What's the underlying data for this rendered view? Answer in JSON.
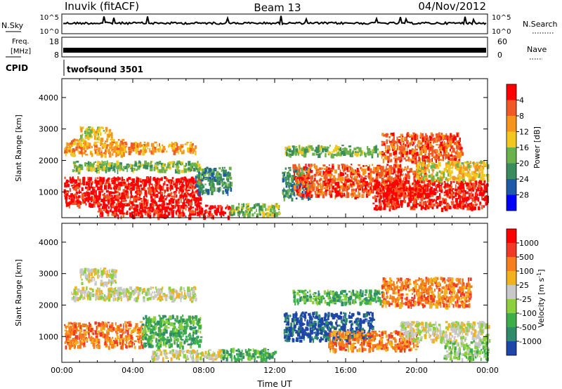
{
  "header": {
    "site": "Inuvik (fitACF)",
    "beam": "Beam 13",
    "date": "04/Nov/2012"
  },
  "panels": {
    "nsky_label": "N.Sky",
    "nsky_ticks": [
      "10^5",
      "10^0"
    ],
    "nsearch_label": "N.Search",
    "nsearch_ticks": [
      "10^5",
      "10^0"
    ],
    "freq_label_1": "Freq.",
    "freq_label_2": "[MHz]",
    "freq_ticks": [
      "18",
      "8"
    ],
    "nave_label": "Nave",
    "nave_ticks": [
      "60",
      "0"
    ],
    "cpid_label": "CPID",
    "cpid_value": "twofsound 3501"
  },
  "chart_data": [
    {
      "type": "heatmap",
      "name": "power-panel",
      "ylabel": "Slant Range [km]",
      "xlabel": "",
      "x_ticks": [
        "00:00",
        "04:00",
        "08:00",
        "12:00",
        "16:00",
        "20:00",
        "00:00"
      ],
      "y_ticks": [
        1000,
        2000,
        3000,
        4000
      ],
      "ylim": [
        180,
        4600
      ],
      "xlim": [
        0,
        24
      ],
      "colorbar": {
        "label": "Power [dB]",
        "ticks": [
          "4",
          "8",
          "12",
          "16",
          "20",
          "24",
          "28"
        ],
        "colors": [
          "#0000ff",
          "#1e5aa8",
          "#3a8c5a",
          "#6cb24a",
          "#f2c81e",
          "#f7941d",
          "#f15a24",
          "#ff0000"
        ]
      },
      "regions": [
        {
          "t0": 0.1,
          "t1": 7.8,
          "r0": 600,
          "r1": 1500,
          "level": 7
        },
        {
          "t0": 0.1,
          "t1": 3.5,
          "r0": 2200,
          "r1": 2700,
          "level": 5
        },
        {
          "t0": 3.0,
          "t1": 7.5,
          "r0": 2300,
          "r1": 2600,
          "level": 5
        },
        {
          "t0": 1.0,
          "t1": 2.8,
          "r0": 2700,
          "r1": 3100,
          "level": 4
        },
        {
          "t0": 0.5,
          "t1": 7.8,
          "r0": 1700,
          "r1": 2000,
          "level": 3
        },
        {
          "t0": 2.0,
          "t1": 9.5,
          "r0": 250,
          "r1": 600,
          "level": 7
        },
        {
          "t0": 7.5,
          "t1": 9.5,
          "r0": 1000,
          "r1": 1800,
          "level": 2
        },
        {
          "t0": 9.5,
          "t1": 12.3,
          "r0": 300,
          "r1": 650,
          "level": 3
        },
        {
          "t0": 12.4,
          "t1": 14.0,
          "r0": 800,
          "r1": 1800,
          "level": 2
        },
        {
          "t0": 13.0,
          "t1": 20.5,
          "r0": 900,
          "r1": 1900,
          "level": 6
        },
        {
          "t0": 17.5,
          "t1": 24.0,
          "r0": 500,
          "r1": 1400,
          "level": 7
        },
        {
          "t0": 12.5,
          "t1": 18.0,
          "r0": 2200,
          "r1": 2500,
          "level": 3
        },
        {
          "t0": 18.0,
          "t1": 22.5,
          "r0": 2000,
          "r1": 2900,
          "level": 6
        },
        {
          "t0": 20.0,
          "t1": 24.0,
          "r0": 1400,
          "r1": 2000,
          "level": 4
        }
      ]
    },
    {
      "type": "heatmap",
      "name": "velocity-panel",
      "ylabel": "Slant Range [km]",
      "xlabel": "Time UT",
      "x_ticks": [
        "00:00",
        "04:00",
        "08:00",
        "12:00",
        "16:00",
        "20:00",
        "00:00"
      ],
      "y_ticks": [
        1000,
        2000,
        3000,
        4000
      ],
      "ylim": [
        180,
        4600
      ],
      "xlim": [
        0,
        24
      ],
      "colorbar": {
        "label": "Velocity [m s^-1]",
        "ticks": [
          "1000",
          "500",
          "100",
          "25",
          "-25",
          "-100",
          "-500",
          "-1000"
        ],
        "colors": [
          "#1e46a8",
          "#2e8c6a",
          "#3cae4a",
          "#8cd040",
          "#c8c8c8",
          "#f2b21e",
          "#f77e1d",
          "#f13a24",
          "#ff0000"
        ]
      },
      "regions": [
        {
          "t0": 0.1,
          "t1": 4.5,
          "r0": 700,
          "r1": 1500,
          "level": 6
        },
        {
          "t0": 4.5,
          "t1": 7.8,
          "r0": 700,
          "r1": 1700,
          "level": 2
        },
        {
          "t0": 0.5,
          "t1": 7.5,
          "r0": 2200,
          "r1": 2600,
          "level": 4
        },
        {
          "t0": 1.0,
          "t1": 3.0,
          "r0": 2700,
          "r1": 3200,
          "level": 4
        },
        {
          "t0": 5.0,
          "t1": 9.0,
          "r0": 300,
          "r1": 600,
          "level": 4
        },
        {
          "t0": 9.0,
          "t1": 12.0,
          "r0": 300,
          "r1": 650,
          "level": 2
        },
        {
          "t0": 12.5,
          "t1": 17.5,
          "r0": 900,
          "r1": 1800,
          "level": 0
        },
        {
          "t0": 15.0,
          "t1": 20.0,
          "r0": 600,
          "r1": 1200,
          "level": 6
        },
        {
          "t0": 19.0,
          "t1": 24.0,
          "r0": 900,
          "r1": 1500,
          "level": 4
        },
        {
          "t0": 21.5,
          "t1": 24.0,
          "r0": 300,
          "r1": 900,
          "level": 3
        },
        {
          "t0": 18.0,
          "t1": 23.0,
          "r0": 2000,
          "r1": 2900,
          "level": 6
        },
        {
          "t0": 13.0,
          "t1": 18.0,
          "r0": 2100,
          "r1": 2500,
          "level": 2
        }
      ]
    }
  ]
}
